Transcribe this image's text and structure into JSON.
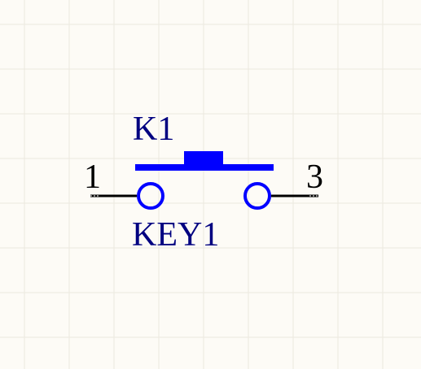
{
  "component": {
    "designator": "K1",
    "comment": "KEY1",
    "pins": [
      {
        "number": "1"
      },
      {
        "number": "3"
      }
    ]
  },
  "colors": {
    "background": "#fdfbf6",
    "grid": "#ebe8df",
    "symbol": "#0000ff",
    "label": "#000080",
    "pin_wire": "#000000",
    "pin_number": "#000000"
  }
}
